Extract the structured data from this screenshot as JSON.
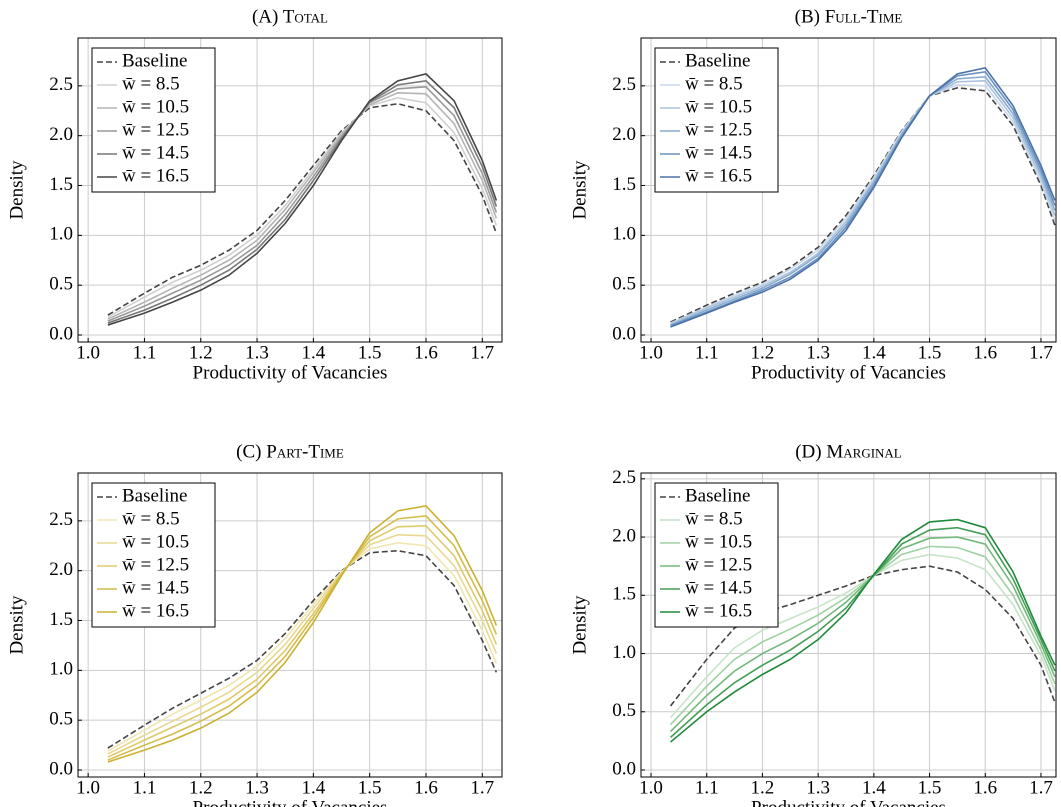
{
  "chart_data": [
    {
      "type": "line",
      "title": "(A) Total",
      "xlabel": "Productivity of Vacancies",
      "ylabel": "Density",
      "x": [
        1.035,
        1.1,
        1.15,
        1.2,
        1.25,
        1.3,
        1.35,
        1.4,
        1.45,
        1.5,
        1.55,
        1.6,
        1.65,
        1.7,
        1.725
      ],
      "xlim": [
        0.982,
        1.735
      ],
      "ylim": [
        -0.07,
        2.98
      ],
      "xticks": [
        {
          "value": 1,
          "label": "1.0"
        },
        1.1,
        1.2,
        1.3,
        1.4,
        1.5,
        1.6,
        1.7
      ],
      "yticks": [
        {
          "value": 0,
          "label": "0.0"
        },
        0.5,
        {
          "value": 1,
          "label": "1.0"
        },
        1.5,
        {
          "value": 2,
          "label": "2.0"
        },
        2.5
      ],
      "grid": true,
      "legend": "upper left",
      "series": [
        {
          "name": "Baseline",
          "color": "#444444",
          "linestyle": "dashed",
          "values": [
            0.2,
            0.42,
            0.58,
            0.7,
            0.85,
            1.05,
            1.35,
            1.7,
            2.05,
            2.28,
            2.32,
            2.25,
            1.95,
            1.4,
            1.02
          ]
        },
        {
          "name": "w̄ = 8.5",
          "color": "#d0d0d0",
          "values": [
            0.18,
            0.38,
            0.53,
            0.65,
            0.8,
            1.0,
            1.3,
            1.66,
            2.03,
            2.3,
            2.38,
            2.33,
            2.03,
            1.47,
            1.1
          ]
        },
        {
          "name": "w̄ = 10.5",
          "color": "#b4b4b4",
          "values": [
            0.16,
            0.33,
            0.47,
            0.6,
            0.75,
            0.95,
            1.26,
            1.63,
            2.01,
            2.31,
            2.43,
            2.42,
            2.12,
            1.55,
            1.17
          ]
        },
        {
          "name": "w̄ = 12.5",
          "color": "#999999",
          "values": [
            0.14,
            0.29,
            0.42,
            0.55,
            0.7,
            0.9,
            1.21,
            1.59,
            1.99,
            2.33,
            2.47,
            2.49,
            2.2,
            1.62,
            1.23
          ]
        },
        {
          "name": "w̄ = 14.5",
          "color": "#777777",
          "values": [
            0.12,
            0.25,
            0.37,
            0.5,
            0.65,
            0.86,
            1.16,
            1.55,
            1.97,
            2.34,
            2.51,
            2.55,
            2.28,
            1.69,
            1.29
          ]
        },
        {
          "name": "w̄ = 16.5",
          "color": "#454545",
          "values": [
            0.1,
            0.22,
            0.33,
            0.45,
            0.6,
            0.82,
            1.12,
            1.5,
            1.95,
            2.35,
            2.55,
            2.62,
            2.35,
            1.75,
            1.35
          ]
        }
      ]
    },
    {
      "type": "line",
      "title": "(B) Full-Time",
      "xlabel": "Productivity of Vacancies",
      "ylabel": "Density",
      "x": [
        1.035,
        1.1,
        1.15,
        1.2,
        1.25,
        1.3,
        1.35,
        1.4,
        1.45,
        1.5,
        1.55,
        1.6,
        1.65,
        1.7,
        1.725
      ],
      "xlim": [
        0.982,
        1.727
      ],
      "ylim": [
        -0.07,
        2.98
      ],
      "xticks": [
        {
          "value": 1,
          "label": "1.0"
        },
        1.1,
        1.2,
        1.3,
        1.4,
        1.5,
        1.6,
        1.7
      ],
      "yticks": [
        {
          "value": 0,
          "label": "0.0"
        },
        0.5,
        {
          "value": 1,
          "label": "1.0"
        },
        1.5,
        {
          "value": 2,
          "label": "2.0"
        },
        2.5
      ],
      "grid": true,
      "legend": "upper left",
      "series": [
        {
          "name": "Baseline",
          "color": "#444444",
          "linestyle": "dashed",
          "values": [
            0.13,
            0.3,
            0.42,
            0.53,
            0.68,
            0.88,
            1.2,
            1.6,
            2.05,
            2.4,
            2.48,
            2.45,
            2.1,
            1.5,
            1.1
          ]
        },
        {
          "name": "w̄ = 8.5",
          "color": "#c8d8ea",
          "values": [
            0.12,
            0.28,
            0.4,
            0.51,
            0.66,
            0.85,
            1.17,
            1.58,
            2.04,
            2.4,
            2.51,
            2.5,
            2.14,
            1.54,
            1.15
          ]
        },
        {
          "name": "w̄ = 10.5",
          "color": "#a9c3df",
          "values": [
            0.11,
            0.27,
            0.38,
            0.49,
            0.63,
            0.82,
            1.14,
            1.55,
            2.02,
            2.4,
            2.54,
            2.55,
            2.18,
            1.58,
            1.2
          ]
        },
        {
          "name": "w̄ = 12.5",
          "color": "#88aacd",
          "values": [
            0.1,
            0.25,
            0.36,
            0.47,
            0.61,
            0.8,
            1.11,
            1.53,
            2.01,
            2.4,
            2.57,
            2.59,
            2.22,
            1.62,
            1.25
          ]
        },
        {
          "name": "w̄ = 14.5",
          "color": "#6890bf",
          "values": [
            0.09,
            0.23,
            0.34,
            0.45,
            0.58,
            0.77,
            1.08,
            1.5,
            1.99,
            2.4,
            2.6,
            2.64,
            2.26,
            1.66,
            1.3
          ]
        },
        {
          "name": "w̄ = 16.5",
          "color": "#4a72a8",
          "values": [
            0.08,
            0.22,
            0.33,
            0.43,
            0.56,
            0.75,
            1.05,
            1.48,
            1.98,
            2.4,
            2.62,
            2.68,
            2.3,
            1.7,
            1.35
          ]
        }
      ]
    },
    {
      "type": "line",
      "title": "(C) Part-Time",
      "xlabel": "Productivity of Vacancies",
      "ylabel": "Density",
      "x": [
        1.035,
        1.1,
        1.15,
        1.2,
        1.25,
        1.3,
        1.35,
        1.4,
        1.45,
        1.5,
        1.55,
        1.6,
        1.65,
        1.7,
        1.725
      ],
      "xlim": [
        0.982,
        1.735
      ],
      "ylim": [
        -0.07,
        2.98
      ],
      "xticks": [
        {
          "value": 1,
          "label": "1.0"
        },
        1.1,
        1.2,
        1.3,
        1.4,
        1.5,
        1.6,
        1.7
      ],
      "yticks": [
        {
          "value": 0,
          "label": "0.0"
        },
        0.5,
        {
          "value": 1,
          "label": "1.0"
        },
        1.5,
        {
          "value": 2,
          "label": "2.0"
        },
        2.5
      ],
      "grid": true,
      "legend": "upper left",
      "series": [
        {
          "name": "Baseline",
          "color": "#444444",
          "linestyle": "dashed",
          "values": [
            0.22,
            0.45,
            0.62,
            0.77,
            0.92,
            1.1,
            1.37,
            1.7,
            2.0,
            2.18,
            2.2,
            2.15,
            1.85,
            1.3,
            0.98
          ]
        },
        {
          "name": "w̄ = 8.5",
          "color": "#f0e6b0",
          "values": [
            0.19,
            0.4,
            0.56,
            0.7,
            0.85,
            1.04,
            1.32,
            1.66,
            1.99,
            2.22,
            2.28,
            2.25,
            1.95,
            1.4,
            1.07
          ]
        },
        {
          "name": "w̄ = 10.5",
          "color": "#e8d890",
          "values": [
            0.16,
            0.35,
            0.49,
            0.63,
            0.78,
            0.98,
            1.26,
            1.62,
            1.98,
            2.26,
            2.36,
            2.35,
            2.05,
            1.5,
            1.17
          ]
        },
        {
          "name": "w̄ = 12.5",
          "color": "#dfca6a",
          "values": [
            0.13,
            0.3,
            0.43,
            0.56,
            0.71,
            0.91,
            1.2,
            1.57,
            1.97,
            2.3,
            2.44,
            2.45,
            2.15,
            1.6,
            1.26
          ]
        },
        {
          "name": "w̄ = 14.5",
          "color": "#d5bc48",
          "values": [
            0.1,
            0.25,
            0.36,
            0.49,
            0.64,
            0.85,
            1.14,
            1.53,
            1.96,
            2.34,
            2.52,
            2.55,
            2.25,
            1.7,
            1.36
          ]
        },
        {
          "name": "w̄ = 16.5",
          "color": "#cbb030",
          "values": [
            0.08,
            0.2,
            0.3,
            0.42,
            0.57,
            0.78,
            1.08,
            1.48,
            1.95,
            2.38,
            2.6,
            2.65,
            2.35,
            1.8,
            1.45
          ]
        }
      ]
    },
    {
      "type": "line",
      "title": "(D) Marginal",
      "xlabel": "Productivity of Vacancies",
      "ylabel": "Density",
      "x": [
        1.035,
        1.1,
        1.15,
        1.2,
        1.25,
        1.3,
        1.35,
        1.4,
        1.45,
        1.5,
        1.55,
        1.6,
        1.65,
        1.7,
        1.725
      ],
      "xlim": [
        0.982,
        1.727
      ],
      "ylim": [
        -0.06,
        2.55
      ],
      "xticks": [
        {
          "value": 1,
          "label": "1.0"
        },
        1.1,
        1.2,
        1.3,
        1.4,
        1.5,
        1.6,
        1.7
      ],
      "yticks": [
        {
          "value": 0,
          "label": "0.0"
        },
        0.5,
        {
          "value": 1,
          "label": "1.0"
        },
        1.5,
        {
          "value": 2,
          "label": "2.0"
        },
        2.5
      ],
      "grid": true,
      "legend": "upper left",
      "series": [
        {
          "name": "Baseline",
          "color": "#444444",
          "linestyle": "dashed",
          "values": [
            0.55,
            0.95,
            1.22,
            1.35,
            1.42,
            1.5,
            1.58,
            1.67,
            1.72,
            1.75,
            1.7,
            1.55,
            1.3,
            0.9,
            0.58
          ]
        },
        {
          "name": "w̄ = 8.5",
          "color": "#c7e4c9",
          "values": [
            0.45,
            0.8,
            1.05,
            1.2,
            1.3,
            1.4,
            1.52,
            1.67,
            1.8,
            1.85,
            1.82,
            1.72,
            1.42,
            0.98,
            0.68
          ]
        },
        {
          "name": "w̄ = 10.5",
          "color": "#9fd1a3",
          "values": [
            0.39,
            0.72,
            0.95,
            1.1,
            1.21,
            1.33,
            1.48,
            1.67,
            1.85,
            1.92,
            1.91,
            1.83,
            1.5,
            1.03,
            0.74
          ]
        },
        {
          "name": "w̄ = 12.5",
          "color": "#72b87a",
          "values": [
            0.33,
            0.64,
            0.85,
            1.0,
            1.12,
            1.26,
            1.44,
            1.67,
            1.9,
            1.99,
            2.0,
            1.94,
            1.58,
            1.08,
            0.8
          ]
        },
        {
          "name": "w̄ = 14.5",
          "color": "#459e55",
          "values": [
            0.28,
            0.56,
            0.75,
            0.9,
            1.03,
            1.19,
            1.39,
            1.67,
            1.94,
            2.06,
            2.08,
            2.02,
            1.64,
            1.12,
            0.85
          ]
        },
        {
          "name": "w̄ = 16.5",
          "color": "#1e8a3a",
          "values": [
            0.24,
            0.5,
            0.67,
            0.82,
            0.95,
            1.12,
            1.35,
            1.68,
            1.98,
            2.13,
            2.15,
            2.08,
            1.7,
            1.15,
            0.9
          ]
        }
      ]
    }
  ]
}
